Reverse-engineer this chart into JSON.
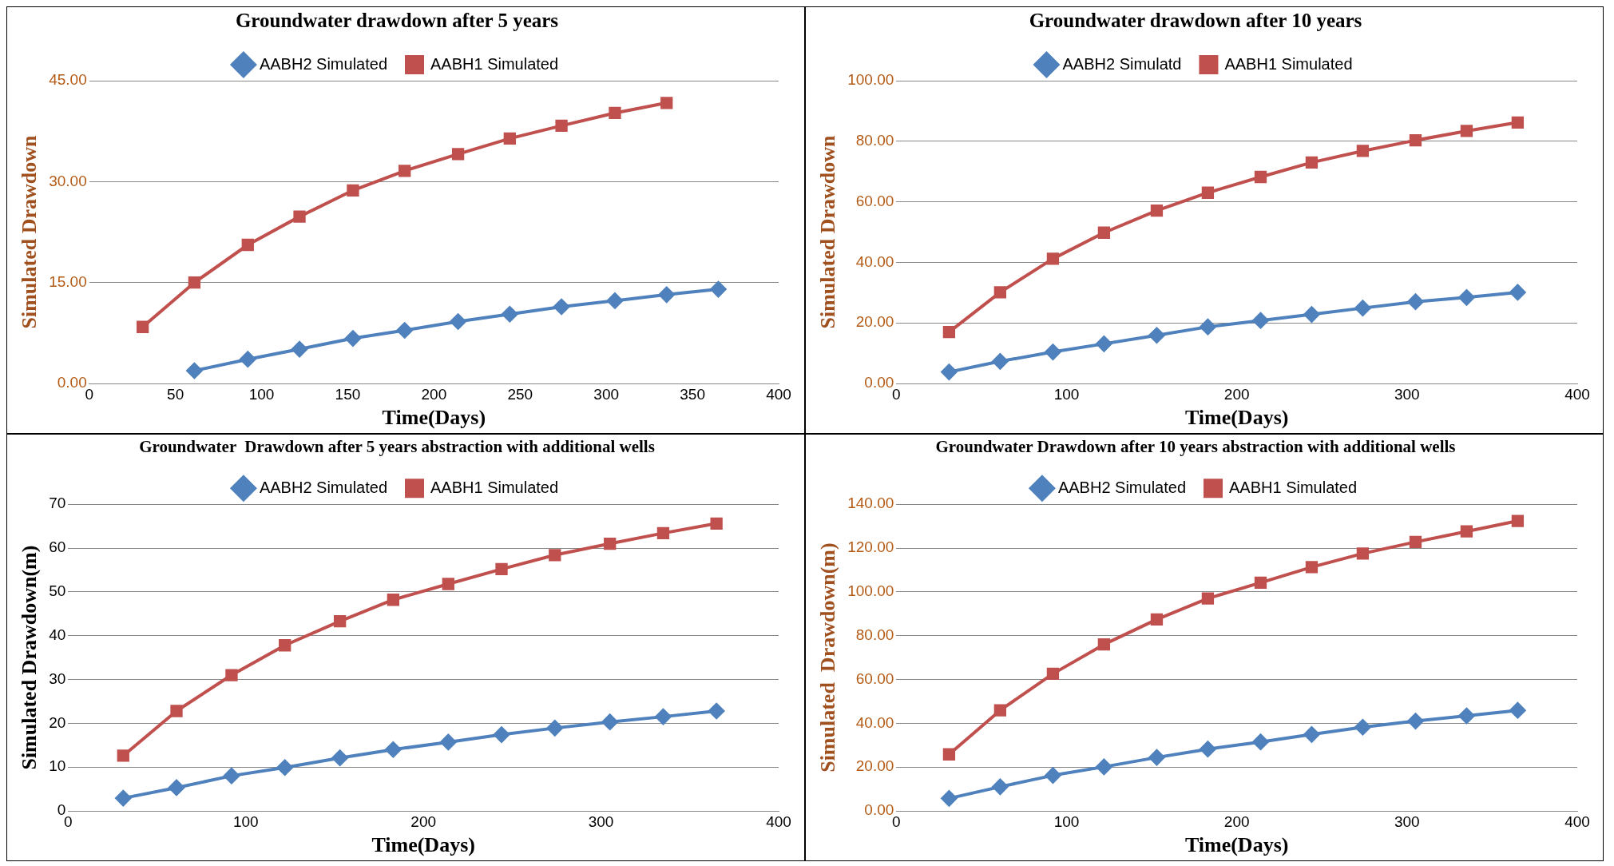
{
  "chart_data": [
    {
      "type": "line",
      "title": "Groundwater drawdown after 5 years",
      "xlabel": "Time(Days)",
      "ylabel": "Simulated Drawdown",
      "xlim": [
        0,
        400
      ],
      "xticks": [
        0,
        50,
        100,
        150,
        200,
        250,
        300,
        350,
        400
      ],
      "ylim": [
        0,
        45
      ],
      "yticks": [
        {
          "value": 0,
          "label": "0.00"
        },
        {
          "value": 15,
          "label": "15.00"
        },
        {
          "value": 30,
          "label": "30.00"
        },
        {
          "value": 45,
          "label": "45.00"
        }
      ],
      "grid": "y",
      "legend": "top",
      "series": [
        {
          "name": "AABH2 Simulated",
          "color": "#4f81bd",
          "marker": "diamond",
          "x": [
            61,
            92,
            122,
            153,
            183,
            214,
            244,
            274,
            305,
            335,
            365
          ],
          "values": [
            1.9,
            3.6,
            5.1,
            6.7,
            7.9,
            9.2,
            10.3,
            11.4,
            12.3,
            13.2,
            14.0
          ]
        },
        {
          "name": "AABH1 Simulated",
          "color": "#c0504d",
          "marker": "square",
          "x": [
            31,
            61,
            92,
            122,
            153,
            183,
            214,
            244,
            274,
            305,
            335
          ],
          "values": [
            8.4,
            15.0,
            20.6,
            24.8,
            28.7,
            31.6,
            34.1,
            36.4,
            38.3,
            40.2,
            41.7
          ]
        }
      ]
    },
    {
      "type": "line",
      "title": "Groundwater drawdown after 10 years",
      "xlabel": "Time(Days)",
      "ylabel": "Simulated Drawdown",
      "xlim": [
        0,
        400
      ],
      "xticks": [
        0,
        100,
        200,
        300,
        400
      ],
      "ylim": [
        0,
        100
      ],
      "yticks": [
        {
          "value": 0,
          "label": "0.00"
        },
        {
          "value": 20,
          "label": "20.00"
        },
        {
          "value": 40,
          "label": "40.00"
        },
        {
          "value": 60,
          "label": "60.00"
        },
        {
          "value": 80,
          "label": "80.00"
        },
        {
          "value": 100,
          "label": "100.00"
        }
      ],
      "grid": "y",
      "legend": "top",
      "series": [
        {
          "name": "AABH2 Simulatd",
          "color": "#4f81bd",
          "marker": "diamond",
          "x": [
            31,
            61,
            92,
            122,
            153,
            183,
            214,
            244,
            274,
            305,
            335,
            365
          ],
          "values": [
            3.8,
            7.3,
            10.4,
            13.1,
            15.9,
            18.7,
            20.8,
            22.8,
            24.9,
            27.0,
            28.4,
            30.1
          ]
        },
        {
          "name": "AABH1 Simulated",
          "color": "#c0504d",
          "marker": "square",
          "x": [
            31,
            61,
            92,
            122,
            153,
            183,
            214,
            244,
            274,
            305,
            335,
            365
          ],
          "values": [
            17.0,
            30.1,
            41.2,
            49.8,
            57.1,
            63.0,
            68.2,
            73.0,
            76.8,
            80.3,
            83.4,
            86.2
          ]
        }
      ]
    },
    {
      "type": "line",
      "title": "Groundwater  Drawdown after 5 years abstraction with additional wells",
      "xlabel": "Time(Days)",
      "ylabel": "Simulated Drawdown(m)",
      "xlim": [
        0,
        400
      ],
      "xticks": [
        0,
        100,
        200,
        300,
        400
      ],
      "ylim": [
        0,
        70
      ],
      "yticks": [
        0,
        10,
        20,
        30,
        40,
        50,
        60,
        70
      ],
      "grid": "y",
      "legend": "top",
      "series": [
        {
          "name": "AABH2 Simulated",
          "color": "#4f81bd",
          "marker": "diamond",
          "x": [
            31,
            61,
            92,
            122,
            153,
            183,
            214,
            244,
            274,
            305,
            335,
            365
          ],
          "values": [
            2.9,
            5.3,
            8.0,
            9.9,
            12.1,
            14.0,
            15.7,
            17.4,
            18.9,
            20.3,
            21.5,
            22.8
          ]
        },
        {
          "name": "AABH1 Simulated",
          "color": "#c0504d",
          "marker": "square",
          "x": [
            31,
            61,
            92,
            122,
            153,
            183,
            214,
            244,
            274,
            305,
            335,
            365
          ],
          "values": [
            12.6,
            22.8,
            31.0,
            37.8,
            43.3,
            48.2,
            51.8,
            55.2,
            58.4,
            61.0,
            63.4,
            65.6
          ]
        }
      ]
    },
    {
      "type": "line",
      "title": "Groundwater Drawdown after 10 years abstraction with additional wells",
      "xlabel": "Time(Days)",
      "ylabel": "Simulated  Drawdown(m)",
      "xlim": [
        0,
        400
      ],
      "xticks": [
        0,
        100,
        200,
        300,
        400
      ],
      "ylim": [
        0,
        140
      ],
      "yticks": [
        {
          "value": 0,
          "label": "0.00"
        },
        {
          "value": 20,
          "label": "20.00"
        },
        {
          "value": 40,
          "label": "40.00"
        },
        {
          "value": 60,
          "label": "60.00"
        },
        {
          "value": 80,
          "label": "80.00"
        },
        {
          "value": 100,
          "label": "100.00"
        },
        {
          "value": 120,
          "label": "120.00"
        },
        {
          "value": 140,
          "label": "140.00"
        }
      ],
      "grid": "y",
      "legend": "top",
      "series": [
        {
          "name": "AABH2 Simulated",
          "color": "#4f81bd",
          "marker": "diamond",
          "x": [
            31,
            61,
            92,
            122,
            153,
            183,
            214,
            244,
            274,
            305,
            335,
            365
          ],
          "values": [
            5.7,
            11.0,
            16.2,
            20.1,
            24.4,
            28.2,
            31.5,
            34.9,
            38.2,
            41.0,
            43.4,
            45.9
          ]
        },
        {
          "name": "AABH1 Simulated",
          "color": "#c0504d",
          "marker": "square",
          "x": [
            31,
            61,
            92,
            122,
            153,
            183,
            214,
            244,
            274,
            305,
            335,
            365
          ],
          "values": [
            25.8,
            45.9,
            62.6,
            76.0,
            87.4,
            97.0,
            104.2,
            111.3,
            117.5,
            122.8,
            127.6,
            132.4
          ]
        }
      ]
    }
  ]
}
